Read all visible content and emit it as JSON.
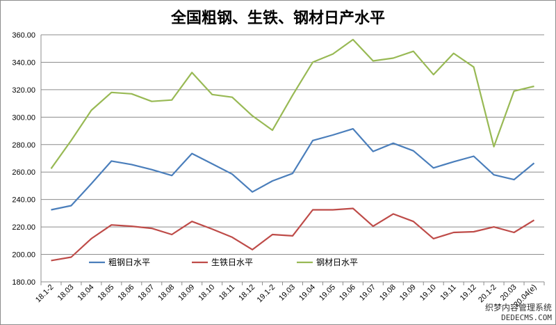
{
  "chart_data": {
    "type": "line",
    "title": "全国粗钢、生铁、钢材日产水平",
    "xlabel": "",
    "ylabel": "",
    "ylim": [
      180,
      360
    ],
    "yticks": [
      "180.00",
      "200.00",
      "220.00",
      "240.00",
      "260.00",
      "280.00",
      "300.00",
      "320.00",
      "340.00",
      "360.00"
    ],
    "categories": [
      "18.1-2",
      "18.03",
      "18.04",
      "18.05",
      "18.06",
      "18.07",
      "18.08",
      "18.09",
      "18.10",
      "18.11",
      "18.12",
      "19.1-2",
      "19.03",
      "19.04",
      "19.05",
      "19.06",
      "19.07",
      "19.08",
      "19.09",
      "19.10",
      "19.11",
      "19.12",
      "20.1-2",
      "20.03",
      "20.04(e)"
    ],
    "grid": "horizontal",
    "legend_position": "lower-left",
    "series": [
      {
        "name": "粗钢日水平",
        "color": "#4a7ebb",
        "values": [
          232.5,
          235.5,
          251.5,
          268.0,
          265.5,
          261.8,
          257.5,
          273.5,
          266.0,
          258.5,
          245.5,
          253.5,
          259.0,
          283.0,
          287.0,
          291.5,
          275.0,
          281.0,
          275.5,
          263.0,
          267.5,
          271.5,
          258.0,
          254.5,
          266.5
        ]
      },
      {
        "name": "生铁日水平",
        "color": "#be4b48",
        "values": [
          195.5,
          198.0,
          211.5,
          221.5,
          220.5,
          219.0,
          214.5,
          224.0,
          218.5,
          212.5,
          203.5,
          214.5,
          213.5,
          232.5,
          232.5,
          233.5,
          220.5,
          229.5,
          224.0,
          211.5,
          216.0,
          216.5,
          220.0,
          216.0,
          225.0
        ]
      },
      {
        "name": "钢材日水平",
        "color": "#98b954",
        "values": [
          262.5,
          283.0,
          305.0,
          318.0,
          317.0,
          311.5,
          312.5,
          332.5,
          316.5,
          314.5,
          301.0,
          290.5,
          316.0,
          340.0,
          346.0,
          356.5,
          341.0,
          343.0,
          348.0,
          331.0,
          346.5,
          336.5,
          278.5,
          319.0,
          322.5
        ]
      }
    ]
  },
  "watermark": {
    "line1": "织梦内容管理系统",
    "line2": "DEDECMS.COM"
  }
}
